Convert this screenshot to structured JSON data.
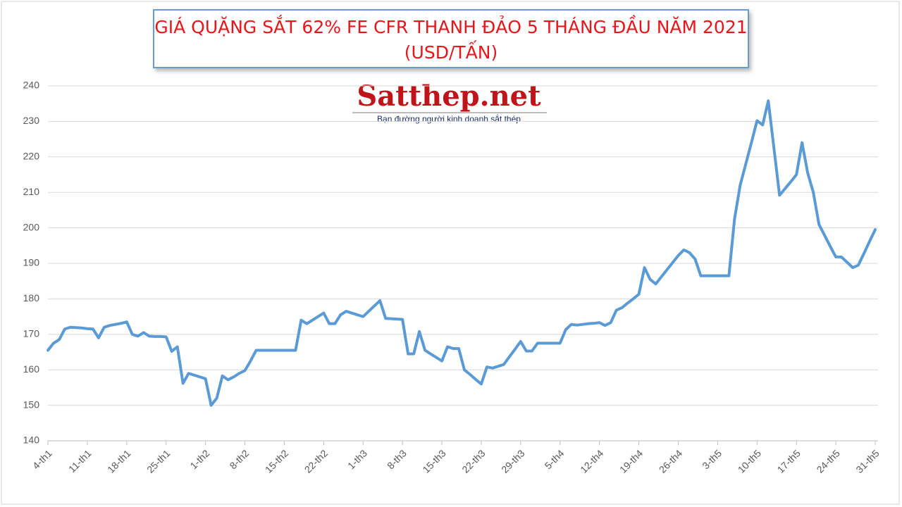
{
  "chart_data": {
    "type": "line",
    "title": "GIÁ QUẶNG SẮT 62% FE CFR THANH ĐẢO 5 THÁNG ĐẦU NĂM 2021",
    "subtitle": "(USD/TẤN)",
    "annotations": [
      "Satthep.net",
      "Bạn đường người kinh doanh sắt thép"
    ],
    "categories": [
      "4-th1",
      null,
      null,
      null,
      null,
      null,
      null,
      "11-th1",
      null,
      null,
      null,
      null,
      null,
      null,
      "18-th1",
      null,
      null,
      null,
      null,
      null,
      null,
      "25-th1",
      null,
      null,
      null,
      null,
      null,
      null,
      "1-th2",
      null,
      null,
      null,
      null,
      null,
      null,
      "8-th2",
      null,
      null,
      null,
      null,
      null,
      null,
      "15-th2",
      null,
      null,
      null,
      null,
      null,
      null,
      "22-th2",
      null,
      null,
      null,
      null,
      null,
      null,
      "1-th3",
      null,
      null,
      null,
      null,
      null,
      null,
      "8-th3",
      null,
      null,
      null,
      null,
      null,
      null,
      "15-th3",
      null,
      null,
      null,
      null,
      null,
      null,
      "22-th3",
      null,
      null,
      null,
      null,
      null,
      null,
      "29-th3",
      null,
      null,
      null,
      null,
      null,
      null,
      "5-th4",
      null,
      null,
      null,
      null,
      null,
      null,
      "12-th4",
      null,
      null,
      null,
      null,
      null,
      null,
      "19-th4",
      null,
      null,
      null,
      null,
      null,
      null,
      "26-th4",
      null,
      null,
      null,
      null,
      null,
      null,
      "3-th5",
      null,
      null,
      null,
      null,
      null,
      null,
      "10-th5",
      null,
      null,
      null,
      null,
      null,
      null,
      "17-th5",
      null,
      null,
      null,
      null,
      null,
      null,
      "24-th5",
      null,
      null,
      null,
      null,
      null,
      null,
      "31-th5"
    ],
    "values": [
      165.5,
      167.5,
      168.5,
      171.5,
      172,
      171.9,
      171.8,
      171.6,
      171.5,
      169,
      172,
      172.5,
      172.8,
      173.1,
      173.5,
      170,
      169.5,
      170.5,
      169.5,
      169.4,
      169.4,
      169.3,
      165.2,
      166.5,
      156.2,
      159,
      158.5,
      158,
      157.5,
      150,
      152,
      158.3,
      157.2,
      158,
      159,
      159.8,
      162.5,
      165.5,
      165.5,
      165.5,
      165.5,
      165.5,
      165.5,
      165.5,
      165.5,
      174,
      173,
      174,
      175,
      176,
      173,
      173,
      175.5,
      176.5,
      176,
      175.5,
      175,
      176.5,
      178,
      179.5,
      174.5,
      174.4,
      174.3,
      174.2,
      164.5,
      164.5,
      170.8,
      165.5,
      164.5,
      163.5,
      162.5,
      166.5,
      166,
      166,
      160,
      158.7,
      157.3,
      156,
      160.8,
      160.5,
      161,
      161.5,
      163.7,
      165.8,
      168,
      165.3,
      165.3,
      167.5,
      167.5,
      167.5,
      167.5,
      167.5,
      171.3,
      172.8,
      172.6,
      172.8,
      173,
      173.1,
      173.3,
      172.5,
      173.3,
      176.8,
      177.5,
      178.8,
      180,
      181.3,
      188.8,
      185.5,
      184.2,
      186.2,
      188.2,
      190.2,
      192.2,
      193.8,
      193,
      191.2,
      186.5,
      186.5,
      186.5,
      186.5,
      186.5,
      186.5,
      202.5,
      212,
      218,
      224,
      230.2,
      229,
      235.8,
      222.5,
      209.2,
      211.1,
      213,
      215,
      224,
      215.5,
      210,
      201,
      197.9,
      194.8,
      191.8,
      191.8,
      190.3,
      188.8,
      189.5,
      192.8,
      196.2,
      199.5
    ],
    "color": "#5b9bd5",
    "ylim": [
      140,
      240
    ],
    "yticks": [
      140,
      150,
      160,
      170,
      180,
      190,
      200,
      210,
      220,
      230,
      240
    ],
    "grid": true
  }
}
